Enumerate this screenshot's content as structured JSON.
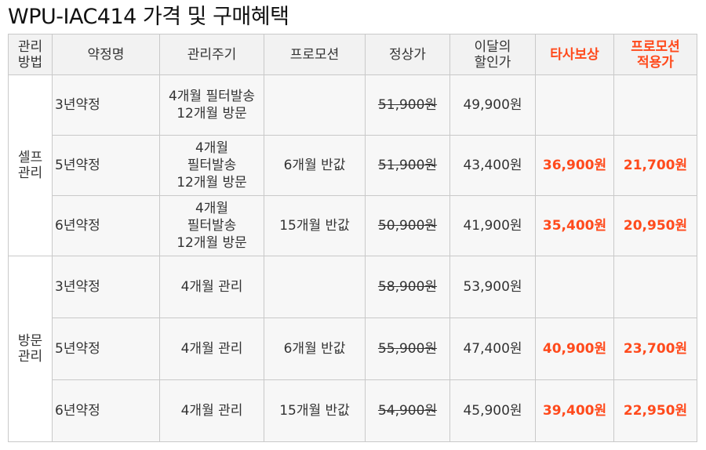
{
  "title": "WPU-IAC414 가격 및 구매혜택",
  "colors": {
    "highlight": "#ff4a1c",
    "header_bg": "#f2f2f2",
    "row_bg": "#f7f7f7",
    "border": "#c9c9c9"
  },
  "headers": {
    "method": [
      "관리",
      "방법"
    ],
    "plan": "약정명",
    "cycle": "관리주기",
    "promo": "프로모션",
    "regular": "정상가",
    "discount": [
      "이달의",
      "할인가"
    ],
    "tradein": "타사보상",
    "promo_price": [
      "프로모션",
      "적용가"
    ]
  },
  "groups": [
    {
      "method": [
        "셀프",
        "관리"
      ],
      "rows": [
        {
          "plan": "3년약정",
          "cycle": [
            "4개월 필터발송",
            "12개월 방문"
          ],
          "promo": "",
          "regular": "51,900원",
          "discount": "49,900원",
          "tradein": "",
          "promo_price": ""
        },
        {
          "plan": "5년약정",
          "cycle": [
            "4개월",
            "필터발송",
            "12개월 방문"
          ],
          "promo": "6개월 반값",
          "regular": "51,900원",
          "discount": "43,400원",
          "tradein": "36,900원",
          "promo_price": "21,700원"
        },
        {
          "plan": "6년약정",
          "cycle": [
            "4개월",
            "필터발송",
            "12개월 방문"
          ],
          "promo": "15개월 반값",
          "regular": "50,900원",
          "discount": "41,900원",
          "tradein": "35,400원",
          "promo_price": "20,950원"
        }
      ]
    },
    {
      "method": [
        "방문",
        "관리"
      ],
      "rows": [
        {
          "plan": "3년약정",
          "cycle": [
            "4개월 관리"
          ],
          "promo": "",
          "regular": "58,900원",
          "discount": "53,900원",
          "tradein": "",
          "promo_price": ""
        },
        {
          "plan": "5년약정",
          "cycle": [
            "4개월 관리"
          ],
          "promo": "6개월 반값",
          "regular": "55,900원",
          "discount": "47,400원",
          "tradein": "40,900원",
          "promo_price": "23,700원"
        },
        {
          "plan": "6년약정",
          "cycle": [
            "4개월 관리"
          ],
          "promo": "15개월 반값",
          "regular": "54,900원",
          "discount": "45,900원",
          "tradein": "39,400원",
          "promo_price": "22,950원"
        }
      ]
    }
  ]
}
